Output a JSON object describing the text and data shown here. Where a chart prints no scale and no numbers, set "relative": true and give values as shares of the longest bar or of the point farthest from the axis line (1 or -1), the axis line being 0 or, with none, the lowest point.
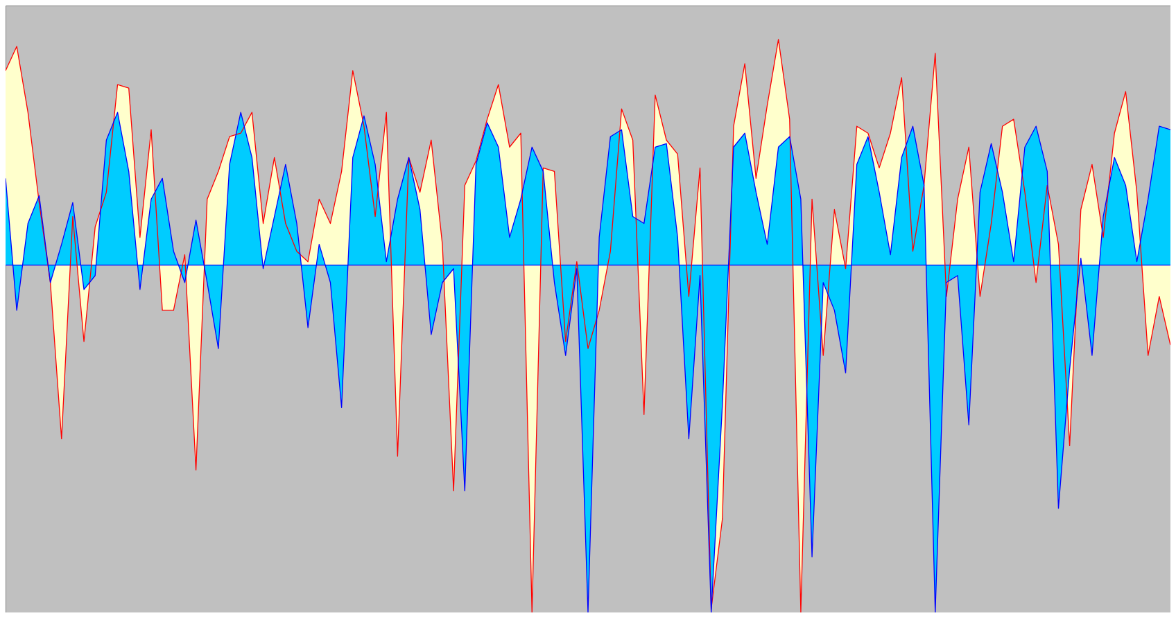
{
  "chart_data": {
    "type": "area",
    "relative": true,
    "categories": [
      null,
      null,
      null,
      null,
      null,
      null,
      null,
      null,
      null,
      null,
      null,
      null,
      null,
      null,
      null,
      null,
      null,
      null,
      null,
      null,
      null,
      null,
      null,
      null,
      null,
      null,
      null,
      null,
      null,
      null,
      null,
      null,
      null,
      null,
      null,
      null,
      null,
      null,
      null,
      null,
      null,
      null,
      null,
      null,
      null,
      null,
      null,
      null,
      null,
      null,
      null,
      null,
      null,
      null,
      null,
      null,
      null,
      null,
      null,
      null,
      null,
      null,
      null,
      null,
      null,
      null,
      null,
      null,
      null,
      null,
      null,
      null,
      null,
      null,
      null,
      null,
      null,
      null,
      null,
      null,
      null,
      null,
      null,
      null,
      null,
      null,
      null,
      null,
      null,
      null,
      null,
      null,
      null,
      null,
      null,
      null,
      null,
      null,
      null,
      null,
      null,
      null,
      null,
      null,
      null
    ],
    "series": [
      {
        "color": "#ff0000",
        "values": [
          0.56,
          0.63,
          0.44,
          0.18,
          -0.05,
          -0.5,
          0.14,
          -0.22,
          0.11,
          0.21,
          0.52,
          0.51,
          0.08,
          0.39,
          -0.13,
          -0.13,
          0.03,
          -0.59,
          0.19,
          0.27,
          0.37,
          0.38,
          0.44,
          0.12,
          0.31,
          0.12,
          0.04,
          0.01,
          0.19,
          0.12,
          0.27,
          0.56,
          0.4,
          0.14,
          0.44,
          -0.55,
          0.31,
          0.21,
          0.36,
          0.06,
          -0.65,
          0.23,
          0.3,
          0.42,
          0.52,
          0.34,
          0.38,
          -1,
          0.28,
          0.27,
          -0.22,
          0.01,
          -0.24,
          -0.13,
          0.04,
          0.45,
          0.36,
          -0.43,
          0.49,
          0.36,
          0.32,
          -0.09,
          0.28,
          -0.99,
          -0.73,
          0.4,
          0.58,
          0.25,
          0.46,
          0.65,
          0.42,
          -1,
          0.19,
          -0.26,
          0.16,
          -0.01,
          0.4,
          0.38,
          0.28,
          0.38,
          0.54,
          0.04,
          0.23,
          0.61,
          -0.09,
          0.19,
          0.34,
          -0.09,
          0.12,
          0.4,
          0.42,
          0.21,
          -0.05,
          0.23,
          0.06,
          -0.52,
          0.16,
          0.29,
          0.08,
          0.38,
          0.5,
          0.21,
          -0.26,
          -0.09,
          -0.23
        ]
      },
      {
        "color": "#0000ff",
        "values": [
          0.25,
          -0.13,
          0.12,
          0.2,
          -0.05,
          0.06,
          0.18,
          -0.07,
          -0.03,
          0.36,
          0.44,
          0.27,
          -0.07,
          0.19,
          0.25,
          0.04,
          -0.05,
          0.13,
          -0.05,
          -0.24,
          0.29,
          0.44,
          0.31,
          -0.01,
          0.14,
          0.29,
          0.12,
          -0.18,
          0.06,
          -0.05,
          -0.41,
          0.31,
          0.43,
          0.29,
          0.01,
          0.19,
          0.31,
          0.16,
          -0.2,
          -0.05,
          -0.01,
          -0.65,
          0.29,
          0.41,
          0.34,
          0.08,
          0.19,
          0.34,
          0.27,
          -0.05,
          -0.26,
          -0.01,
          -1,
          0.08,
          0.37,
          0.39,
          0.14,
          0.12,
          0.34,
          0.35,
          0.08,
          -0.5,
          -0.03,
          -1,
          -0.4,
          0.34,
          0.38,
          0.21,
          0.06,
          0.34,
          0.37,
          0.19,
          -0.84,
          -0.05,
          -0.13,
          -0.31,
          0.29,
          0.37,
          0.21,
          0.03,
          0.31,
          0.4,
          0.23,
          -1,
          -0.05,
          -0.03,
          -0.46,
          0.21,
          0.35,
          0.21,
          0.01,
          0.34,
          0.4,
          0.27,
          -0.7,
          -0.3,
          0.02,
          -0.26,
          0.14,
          0.31,
          0.23,
          0.01,
          0.19,
          0.4,
          0.39
        ]
      }
    ],
    "ref_lines": [
      {
        "axis": "y",
        "value": 0,
        "color": "#0000ff"
      }
    ]
  }
}
